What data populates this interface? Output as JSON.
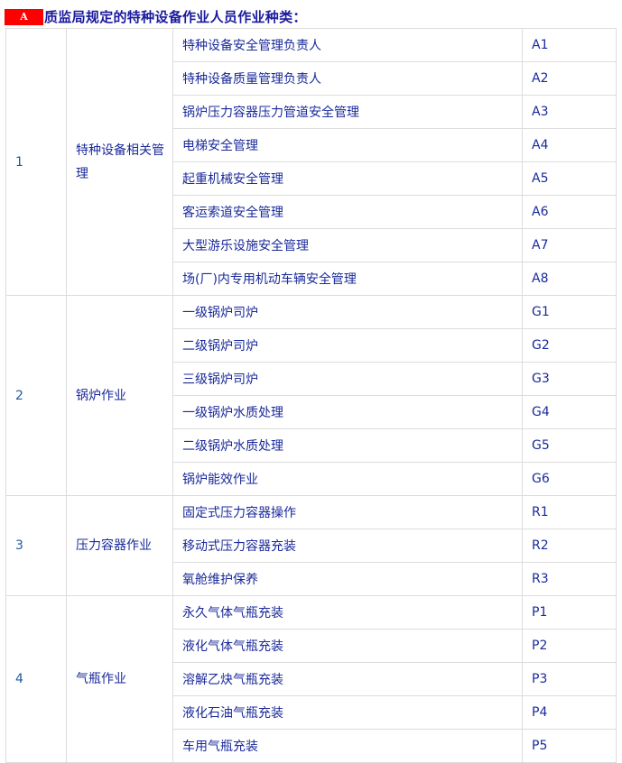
{
  "title": {
    "badge": "A",
    "text": "质监局规定的特种设备作业人员作业种类："
  },
  "groups": [
    {
      "num": "1",
      "category": "特种设备相关管理",
      "items": [
        {
          "name": "特种设备安全管理负责人",
          "code": "A1"
        },
        {
          "name": "特种设备质量管理负责人",
          "code": "A2"
        },
        {
          "name": "锅炉压力容器压力管道安全管理",
          "code": "A3"
        },
        {
          "name": "电梯安全管理",
          "code": "A4"
        },
        {
          "name": "起重机械安全管理",
          "code": "A5"
        },
        {
          "name": "客运索道安全管理",
          "code": "A6"
        },
        {
          "name": "大型游乐设施安全管理",
          "code": "A7"
        },
        {
          "name": "场(厂)内专用机动车辆安全管理",
          "code": "A8"
        }
      ]
    },
    {
      "num": "2",
      "category": "锅炉作业",
      "items": [
        {
          "name": "一级锅炉司炉",
          "code": "G1"
        },
        {
          "name": "二级锅炉司炉",
          "code": "G2"
        },
        {
          "name": "三级锅炉司炉",
          "code": "G3"
        },
        {
          "name": "一级锅炉水质处理",
          "code": "G4"
        },
        {
          "name": "二级锅炉水质处理",
          "code": "G5"
        },
        {
          "name": "锅炉能效作业",
          "code": "G6"
        }
      ]
    },
    {
      "num": "3",
      "category": "压力容器作业",
      "items": [
        {
          "name": "固定式压力容器操作",
          "code": "R1"
        },
        {
          "name": "移动式压力容器充装",
          "code": "R2"
        },
        {
          "name": "氧舱维护保养",
          "code": "R3"
        }
      ]
    },
    {
      "num": "4",
      "category": "气瓶作业",
      "items": [
        {
          "name": "永久气体气瓶充装",
          "code": "P1"
        },
        {
          "name": "液化气体气瓶充装",
          "code": "P2"
        },
        {
          "name": "溶解乙炔气瓶充装",
          "code": "P3"
        },
        {
          "name": "液化石油气瓶充装",
          "code": "P4"
        },
        {
          "name": "车用气瓶充装",
          "code": "P5"
        }
      ]
    }
  ]
}
